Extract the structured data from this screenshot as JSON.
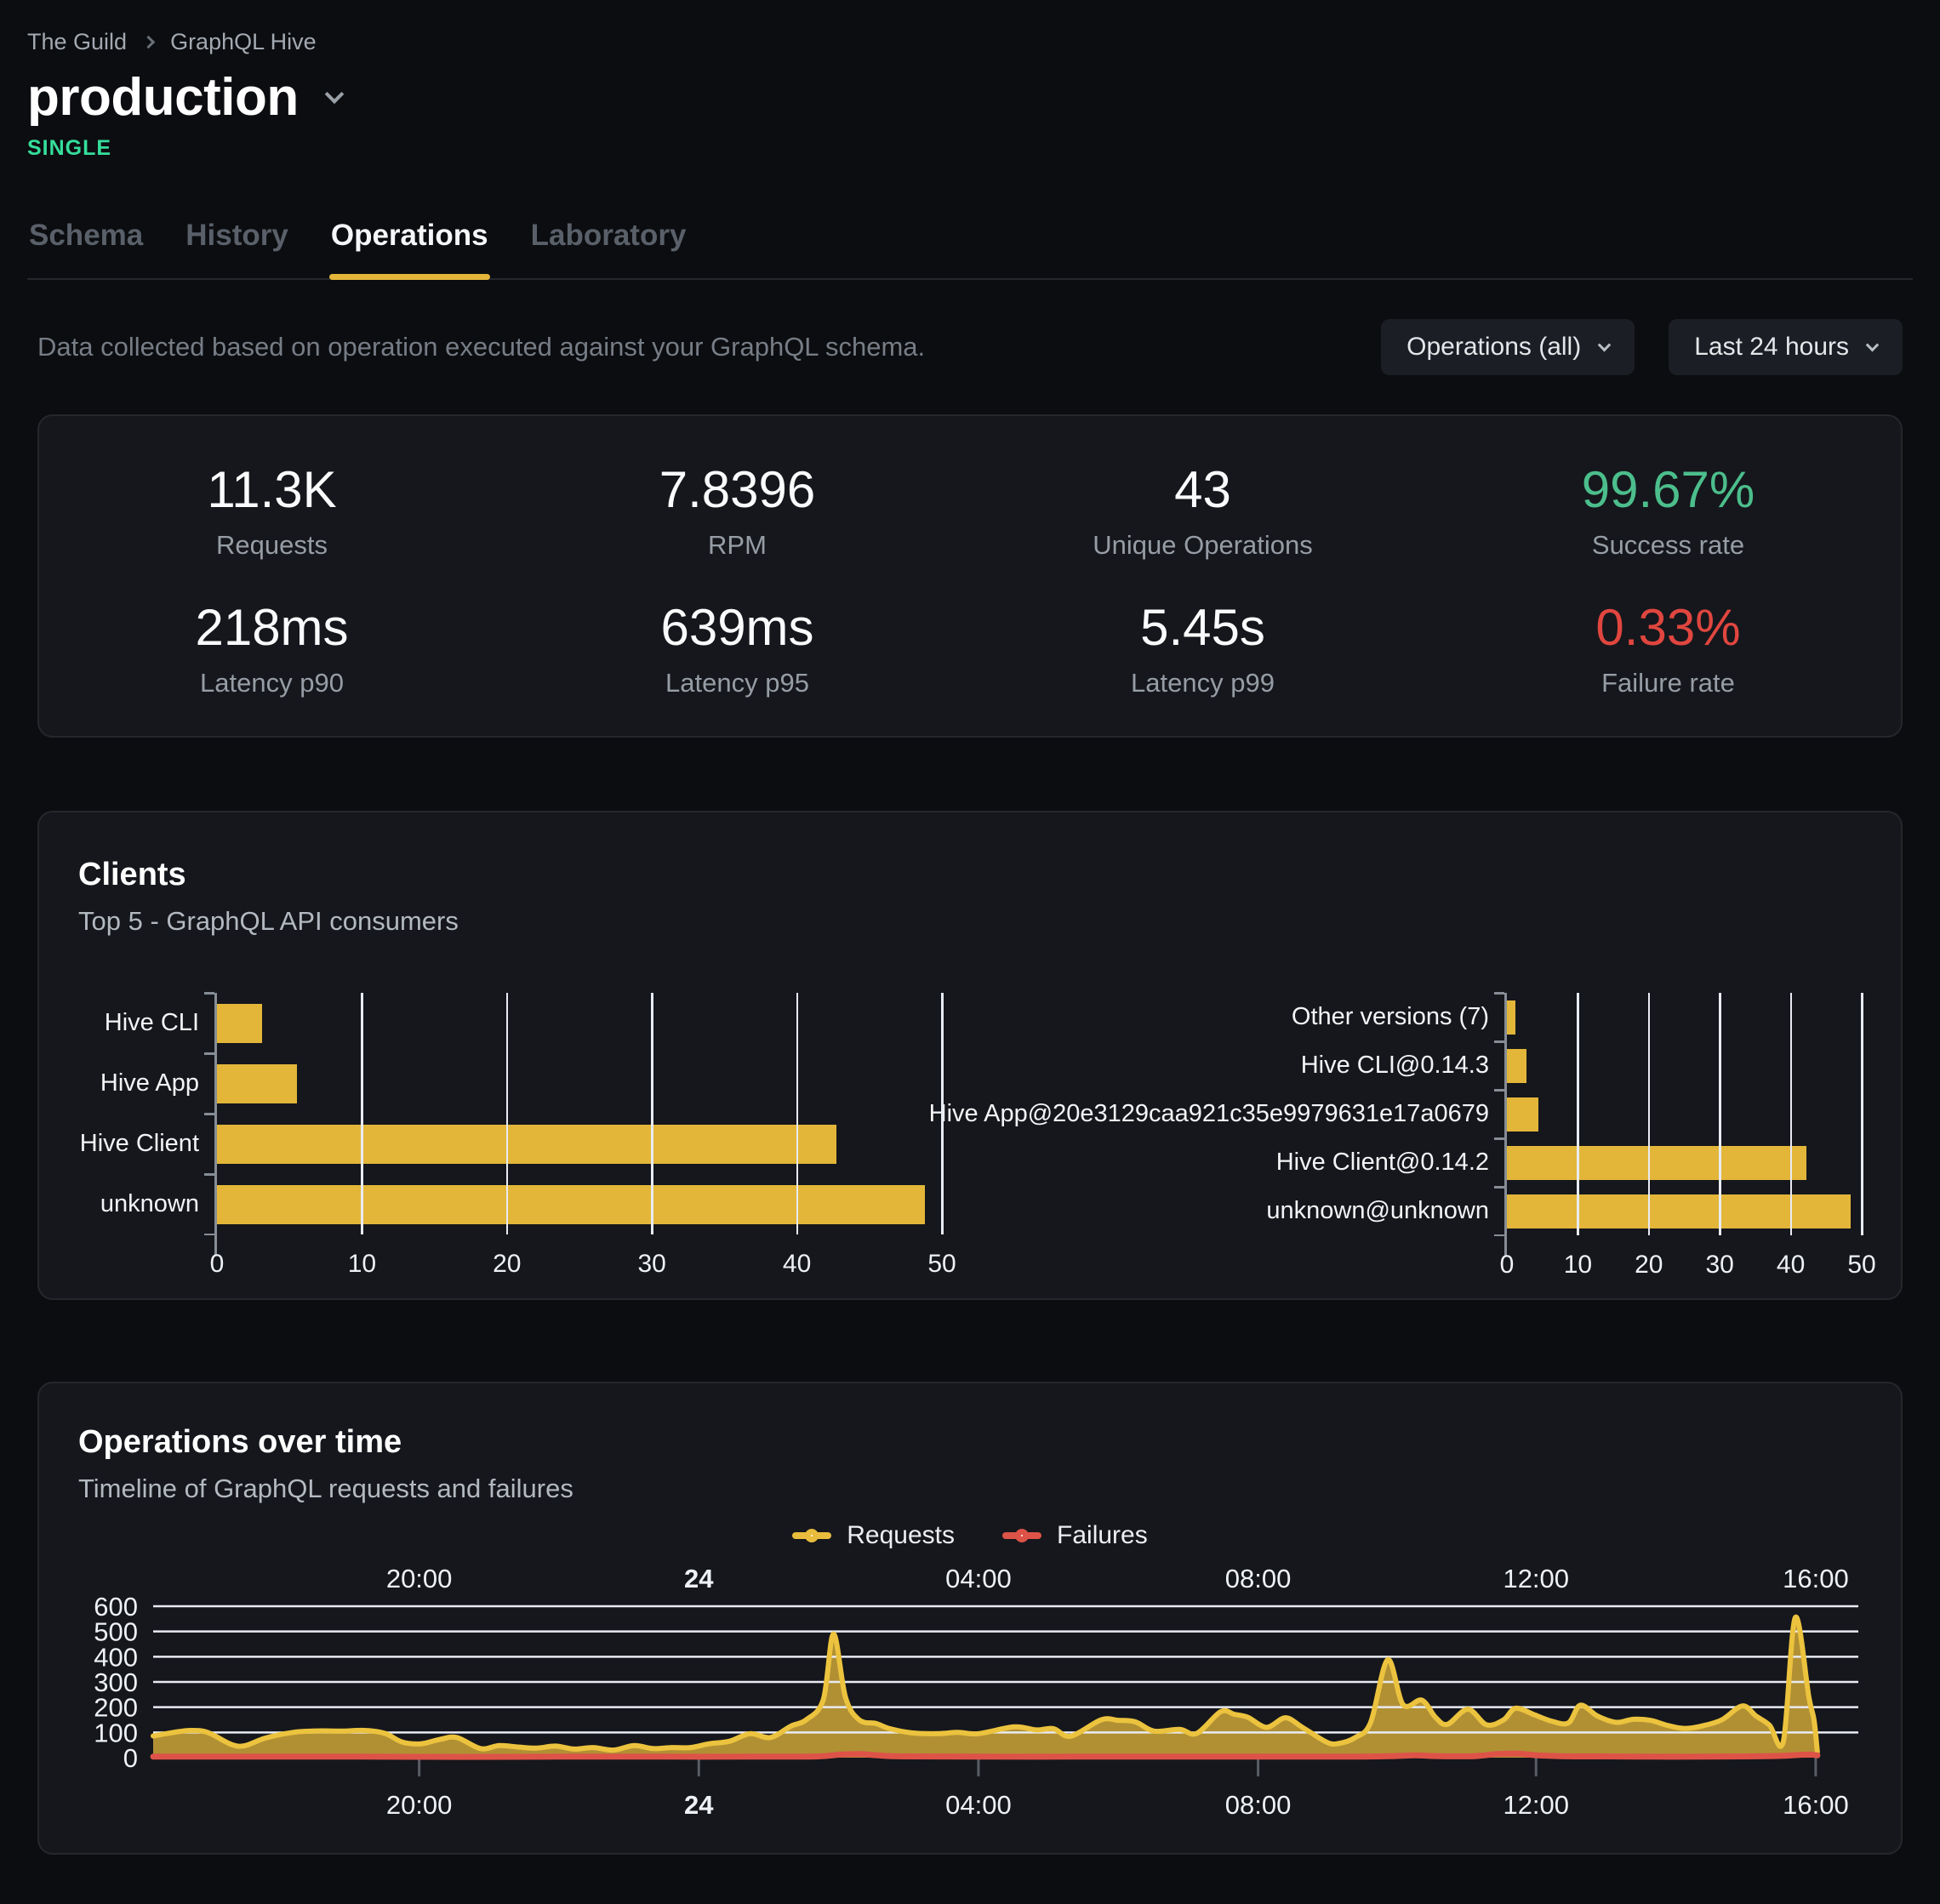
{
  "header": {
    "breadcrumb": {
      "org": "The Guild",
      "project": "GraphQL Hive"
    },
    "target_name": "production",
    "badge": "SINGLE"
  },
  "tabs": [
    {
      "label": "Schema",
      "active": false
    },
    {
      "label": "History",
      "active": false
    },
    {
      "label": "Operations",
      "active": true
    },
    {
      "label": "Laboratory",
      "active": false
    }
  ],
  "filters": {
    "description": "Data collected based on operation executed against your GraphQL schema.",
    "operations_dropdown": "Operations (all)",
    "period_dropdown": "Last 24 hours"
  },
  "stats": [
    {
      "value": "11.3K",
      "label": "Requests"
    },
    {
      "value": "7.8396",
      "label": "RPM"
    },
    {
      "value": "43",
      "label": "Unique Operations"
    },
    {
      "value": "99.67%",
      "label": "Success rate",
      "color": "#4cbe8c"
    },
    {
      "value": "218ms",
      "label": "Latency p90"
    },
    {
      "value": "639ms",
      "label": "Latency p95"
    },
    {
      "value": "5.45s",
      "label": "Latency p99"
    },
    {
      "value": "0.33%",
      "label": "Failure rate",
      "color": "#e0463f"
    }
  ],
  "clients_card": {
    "title": "Clients",
    "subtitle": "Top 5 - GraphQL API consumers"
  },
  "ops_card": {
    "title": "Operations over time",
    "subtitle": "Timeline of GraphQL requests and failures",
    "legend": [
      {
        "label": "Requests",
        "color": "#e8bc3d"
      },
      {
        "label": "Failures",
        "color": "#dd5348"
      }
    ]
  },
  "colors": {
    "accent_yellow": "#e3b63a",
    "success_green": "#4cbe8c",
    "failure_red": "#e0463f",
    "badge_green": "#35dd9b",
    "card_bg": "#15171c",
    "page_bg": "#0c0d10",
    "grid_white": "#e8ebf2"
  },
  "chart_data": [
    {
      "name": "clients_top5",
      "type": "bar",
      "orientation": "horizontal",
      "categories": [
        "Hive CLI",
        "Hive App",
        "Hive Client",
        "unknown"
      ],
      "values": [
        3.1,
        5.5,
        42.7,
        48.8
      ],
      "xlim": [
        0,
        50
      ],
      "xticks": [
        0,
        10,
        20,
        30,
        40,
        50
      ],
      "bar_color": "#e3b63a",
      "grid": true
    },
    {
      "name": "clients_top5_versions",
      "type": "bar",
      "orientation": "horizontal",
      "categories": [
        "Other versions (7)",
        "Hive CLI@0.14.3",
        "Hive App@20e3129caa921c35e9979631e17a0679",
        "Hive Client@0.14.2",
        "unknown@unknown"
      ],
      "values": [
        1.2,
        2.7,
        4.4,
        42.2,
        48.5
      ],
      "xlim": [
        0,
        50
      ],
      "xticks": [
        0,
        10,
        20,
        30,
        40,
        50
      ],
      "bar_color": "#e3b63a",
      "grid": true
    },
    {
      "name": "operations_over_time",
      "type": "area",
      "title": "Operations over time",
      "ylim": [
        0,
        600
      ],
      "yticks": [
        0,
        100,
        200,
        300,
        400,
        500,
        600
      ],
      "x_ticks": [
        {
          "label": "20:00",
          "pos": 0.156
        },
        {
          "label": "24",
          "pos": 0.32,
          "bold": true
        },
        {
          "label": "04:00",
          "pos": 0.484
        },
        {
          "label": "08:00",
          "pos": 0.648
        },
        {
          "label": "12:00",
          "pos": 0.811
        },
        {
          "label": "16:00",
          "pos": 0.975
        }
      ],
      "series": [
        {
          "name": "Requests",
          "color": "#ecc33e",
          "fill": "#e6ba3c",
          "fill_opacity": 0.75,
          "points": [
            [
              0,
              86
            ],
            [
              1.2,
              100
            ],
            [
              2.2,
              108
            ],
            [
              3.2,
              100
            ],
            [
              4.6,
              52
            ],
            [
              5.4,
              48
            ],
            [
              6.6,
              78
            ],
            [
              8.2,
              100
            ],
            [
              9.6,
              106
            ],
            [
              11,
              105
            ],
            [
              12.4,
              108
            ],
            [
              13.6,
              96
            ],
            [
              14.6,
              62
            ],
            [
              15.7,
              55
            ],
            [
              16.8,
              72
            ],
            [
              17.8,
              80
            ],
            [
              19.2,
              36
            ],
            [
              20.3,
              48
            ],
            [
              21.4,
              42
            ],
            [
              22.5,
              38
            ],
            [
              23.6,
              46
            ],
            [
              24.7,
              34
            ],
            [
              25.8,
              40
            ],
            [
              27,
              30
            ],
            [
              28.2,
              48
            ],
            [
              29.3,
              36
            ],
            [
              30.4,
              40
            ],
            [
              31.5,
              40
            ],
            [
              32.6,
              55
            ],
            [
              33.8,
              65
            ],
            [
              35,
              95
            ],
            [
              36.2,
              80
            ],
            [
              37.4,
              125
            ],
            [
              38.3,
              150
            ],
            [
              39.3,
              230
            ],
            [
              39.9,
              490
            ],
            [
              40.6,
              240
            ],
            [
              41.4,
              150
            ],
            [
              42.4,
              135
            ],
            [
              43.2,
              115
            ],
            [
              44.5,
              98
            ],
            [
              46,
              95
            ],
            [
              47.2,
              100
            ],
            [
              48.4,
              95
            ],
            [
              50.5,
              122
            ],
            [
              51.8,
              110
            ],
            [
              52.8,
              115
            ],
            [
              53.8,
              85
            ],
            [
              55.6,
              150
            ],
            [
              56.6,
              148
            ],
            [
              57.6,
              142
            ],
            [
              58.7,
              105
            ],
            [
              60.2,
              112
            ],
            [
              61.2,
              96
            ],
            [
              62.6,
              182
            ],
            [
              63.4,
              172
            ],
            [
              64.2,
              160
            ],
            [
              65.3,
              120
            ],
            [
              66.4,
              158
            ],
            [
              67.4,
              120
            ],
            [
              68.8,
              62
            ],
            [
              69.5,
              56
            ],
            [
              70.5,
              80
            ],
            [
              71.4,
              140
            ],
            [
              72.4,
              388
            ],
            [
              73.3,
              210
            ],
            [
              74.4,
              228
            ],
            [
              75.2,
              160
            ],
            [
              75.9,
              132
            ],
            [
              77.1,
              192
            ],
            [
              78.2,
              130
            ],
            [
              79.2,
              150
            ],
            [
              79.9,
              196
            ],
            [
              81,
              170
            ],
            [
              82,
              145
            ],
            [
              83,
              138
            ],
            [
              83.7,
              208
            ],
            [
              84.7,
              165
            ],
            [
              85.8,
              140
            ],
            [
              86.8,
              152
            ],
            [
              87.8,
              148
            ],
            [
              88.8,
              128
            ],
            [
              89.8,
              116
            ],
            [
              90.8,
              125
            ],
            [
              92,
              150
            ],
            [
              93.2,
              205
            ],
            [
              94,
              165
            ],
            [
              94.8,
              128
            ],
            [
              95.6,
              62
            ],
            [
              96.3,
              555
            ],
            [
              97.1,
              240
            ],
            [
              97.4,
              150
            ],
            [
              97.6,
              22
            ]
          ]
        },
        {
          "name": "Failures",
          "color": "#dd5348",
          "points": [
            [
              0,
              4
            ],
            [
              6,
              4
            ],
            [
              12,
              4
            ],
            [
              18,
              3
            ],
            [
              24,
              4
            ],
            [
              30,
              4
            ],
            [
              36,
              4
            ],
            [
              39,
              5
            ],
            [
              40.3,
              12
            ],
            [
              41.5,
              14
            ],
            [
              42.5,
              9
            ],
            [
              44,
              5
            ],
            [
              48,
              4
            ],
            [
              54,
              4
            ],
            [
              60,
              4
            ],
            [
              66,
              4
            ],
            [
              70,
              4
            ],
            [
              72.5,
              6
            ],
            [
              74,
              9
            ],
            [
              75.5,
              6
            ],
            [
              77.5,
              6
            ],
            [
              78.8,
              14
            ],
            [
              80,
              16
            ],
            [
              81,
              10
            ],
            [
              82.5,
              6
            ],
            [
              85,
              5
            ],
            [
              88,
              4
            ],
            [
              91,
              4
            ],
            [
              93.5,
              5
            ],
            [
              95.5,
              7
            ],
            [
              96.5,
              11
            ],
            [
              97.2,
              12
            ],
            [
              97.6,
              9
            ]
          ]
        }
      ]
    }
  ]
}
